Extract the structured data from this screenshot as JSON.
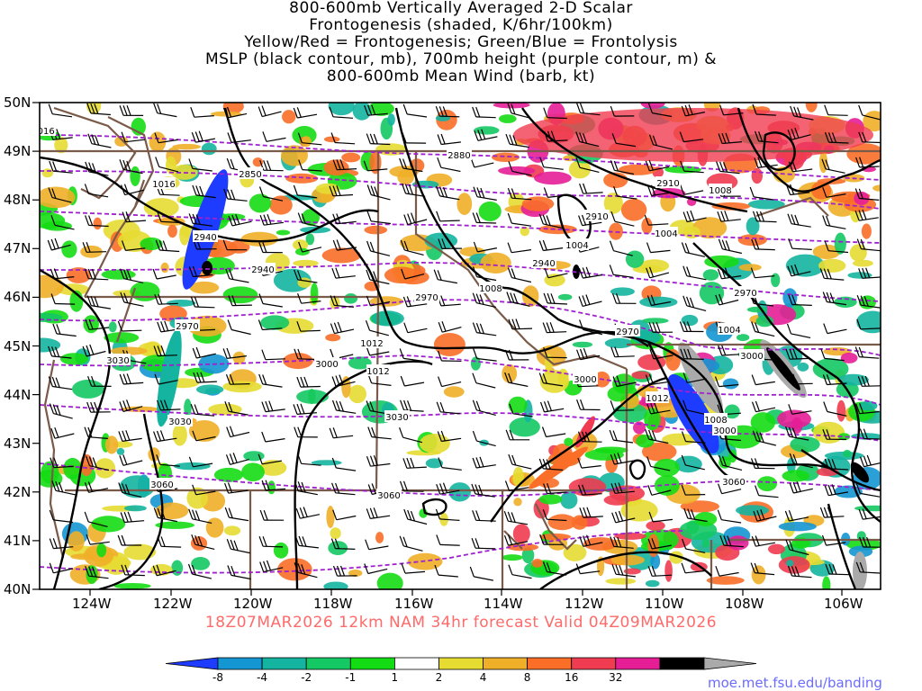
{
  "title": {
    "line1": "800-600mb Vertically Averaged 2-D Scalar",
    "line2": "Frontogenesis (shaded, K/6hr/100km)",
    "line3": "Yellow/Red = Frontogenesis;  Green/Blue = Frontolysis",
    "line4": "MSLP (black contour, mb), 700mb height (purple contour, m) &",
    "line5": "800-600mb Mean Wind (barb, kt)"
  },
  "valid_line": "18Z07MAR2026 12km NAM 34hr forecast Valid 04Z09MAR2026",
  "credit": "moe.met.fsu.edu/banding",
  "lat_labels": [
    "50N",
    "49N",
    "48N",
    "47N",
    "46N",
    "45N",
    "44N",
    "43N",
    "42N",
    "41N",
    "40N"
  ],
  "lon_labels": [
    "124W",
    "122W",
    "120W",
    "118W",
    "116W",
    "114W",
    "112W",
    "110W",
    "108W",
    "106W"
  ],
  "legend": {
    "values": [
      "-8",
      "-4",
      "-2",
      "-1",
      "1",
      "2",
      "4",
      "8",
      "16",
      "32"
    ],
    "colors": [
      "#1e3cff",
      "#1496d2",
      "#14b4a0",
      "#14c864",
      "#14dc14",
      "#ffffff",
      "#e6dc32",
      "#f0af28",
      "#fa6e28",
      "#f03c50",
      "#e61e96",
      "#000000",
      "#aaaaaa"
    ]
  },
  "height_labels": [
    "2880",
    "2850",
    "2880",
    "2910",
    "2910",
    "2940",
    "2940",
    "2940",
    "2970",
    "2970",
    "2970",
    "2970",
    "3000",
    "3000",
    "3000",
    "3000",
    "3030",
    "3030",
    "3030",
    "3060",
    "3060",
    "3060"
  ],
  "mslp_labels": [
    "1016",
    "1004",
    "1004",
    "1008",
    "1012",
    "1012",
    "1008",
    "1012",
    "1008",
    "1004",
    "1008",
    "1016"
  ]
}
